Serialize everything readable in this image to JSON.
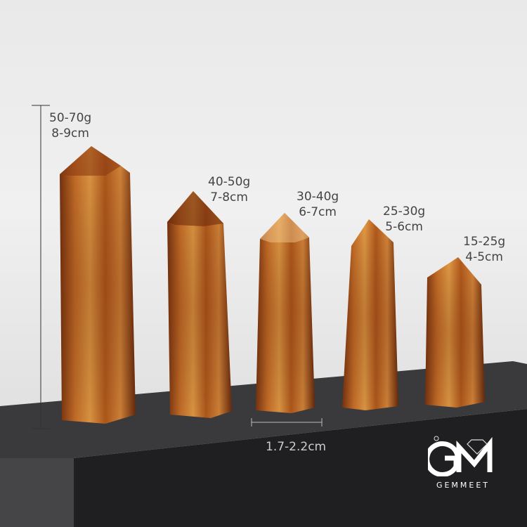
{
  "crystals": [
    {
      "weight": "50-70g",
      "length": "8-9cm"
    },
    {
      "weight": "40-50g",
      "length": "7-8cm"
    },
    {
      "weight": "30-40g",
      "length": "6-7cm"
    },
    {
      "weight": "25-30g",
      "length": "5-6cm"
    },
    {
      "weight": "15-25g",
      "length": "4-5cm"
    }
  ],
  "width_label": "1.7-2.2cm",
  "logo": {
    "monogram": "GM",
    "name": "GEMMEET"
  },
  "colors": {
    "crystal_light": "#d98a35",
    "crystal_dark": "#6b2a0c",
    "stand": "#2b2b2d",
    "background": "#ececec"
  }
}
